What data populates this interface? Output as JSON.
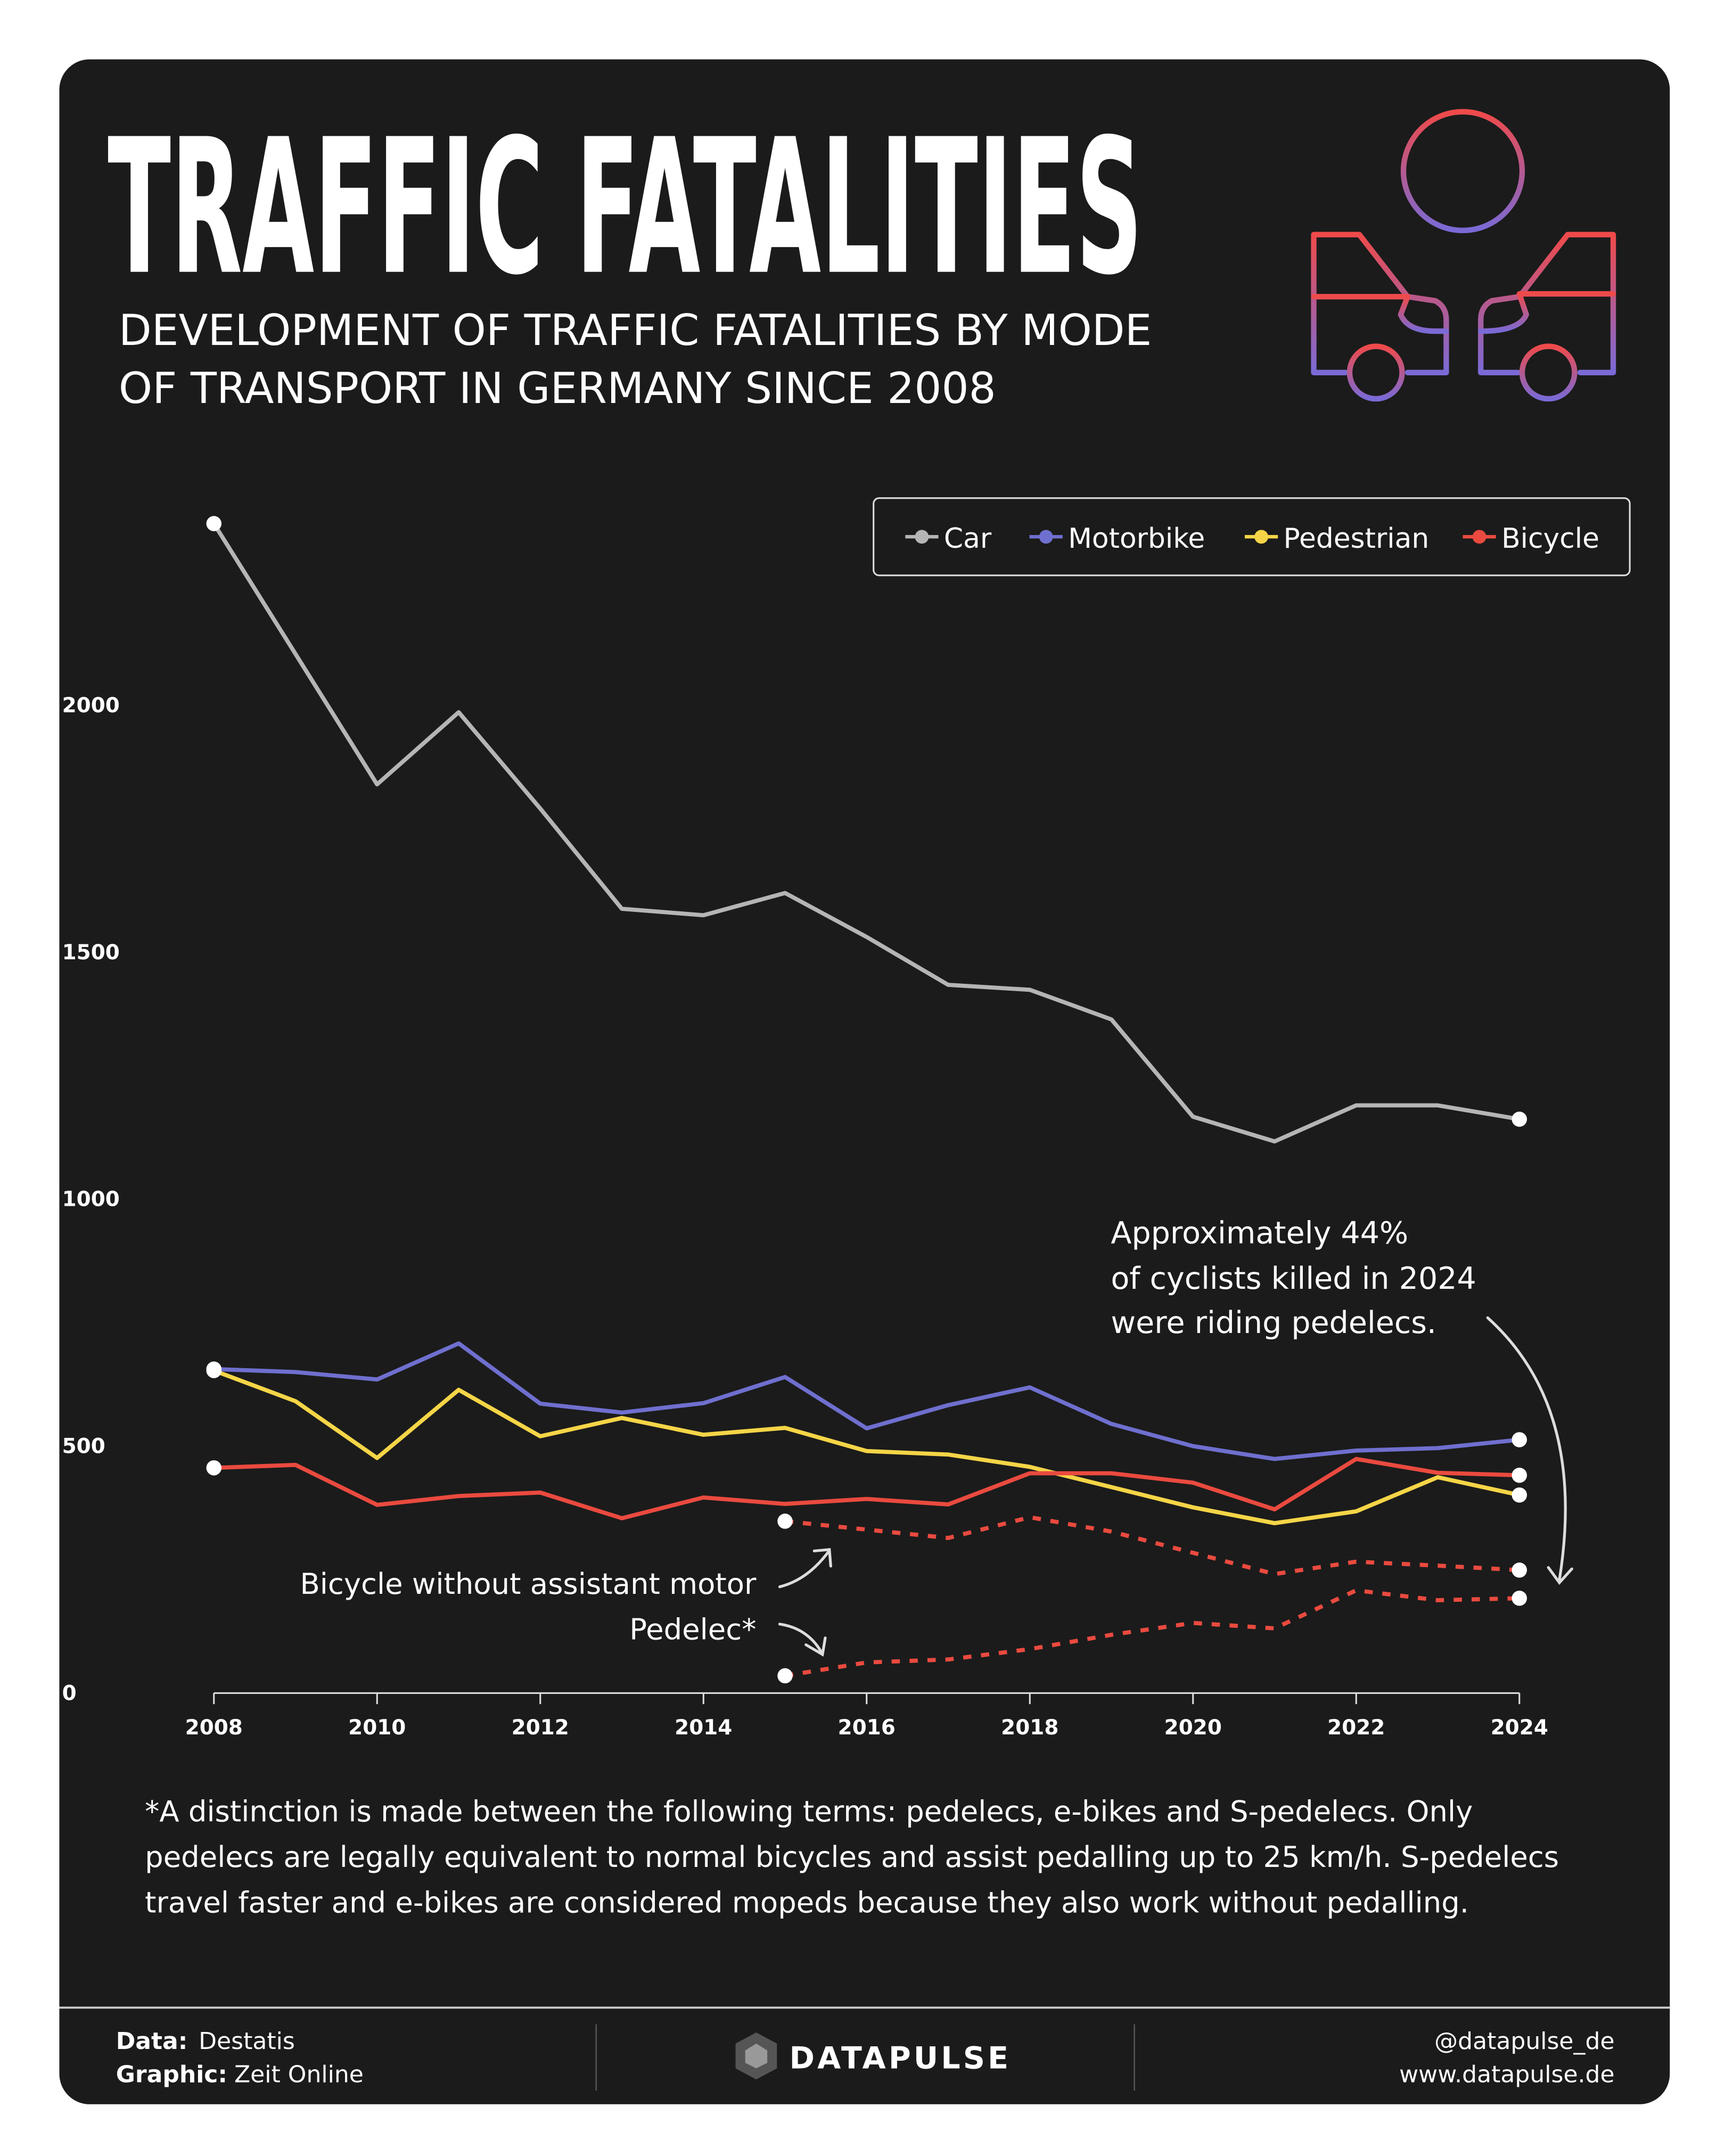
{
  "chart_data": {
    "type": "line",
    "title": "TRAFFIC FATALITIES",
    "subtitle": [
      "DEVELOPMENT OF TRAFFIC FATALITIES BY MODE",
      "OF TRANSPORT IN GERMANY SINCE 2008"
    ],
    "x": [
      2008,
      2009,
      2010,
      2011,
      2012,
      2013,
      2014,
      2015,
      2016,
      2017,
      2018,
      2019,
      2020,
      2021,
      2022,
      2023,
      2024
    ],
    "xlim": [
      2008,
      2024
    ],
    "xticks": [
      2008,
      2010,
      2012,
      2014,
      2016,
      2018,
      2020,
      2022,
      2024
    ],
    "ylim": [
      0,
      2400
    ],
    "yticks": [
      0,
      500,
      1000,
      1500,
      2000
    ],
    "legend": "top-right",
    "series": [
      {
        "name": "Car",
        "color": "#b5b5b5",
        "values": [
          2368,
          2104,
          1840,
          1986,
          1791,
          1588,
          1575,
          1620,
          1531,
          1434,
          1424,
          1364,
          1167,
          1117,
          1190,
          1190,
          1162
        ]
      },
      {
        "name": "Motorbike",
        "color": "#6f6fcf",
        "values": [
          656,
          650,
          635,
          708,
          586,
          568,
          587,
          640,
          536,
          583,
          619,
          545,
          500,
          474,
          491,
          496,
          513
        ]
      },
      {
        "name": "Pedestrian",
        "color": "#f5d547",
        "values": [
          653,
          591,
          476,
          614,
          520,
          557,
          523,
          537,
          490,
          483,
          458,
          417,
          376,
          344,
          368,
          437,
          401
        ]
      },
      {
        "name": "Bicycle",
        "color": "#ea4a3f",
        "values": [
          456,
          462,
          381,
          399,
          406,
          354,
          396,
          383,
          393,
          382,
          445,
          445,
          426,
          372,
          474,
          446,
          441
        ]
      },
      {
        "name": "Bicycle without assistant motor",
        "color": "#ea4a3f",
        "style": "dashed",
        "values": [
          null,
          null,
          null,
          null,
          null,
          null,
          null,
          348,
          331,
          314,
          356,
          327,
          284,
          241,
          266,
          258,
          249
        ]
      },
      {
        "name": "Pedelec*",
        "color": "#ea4a3f",
        "style": "dashed",
        "values": [
          null,
          null,
          null,
          null,
          null,
          null,
          null,
          35,
          62,
          68,
          89,
          118,
          142,
          131,
          208,
          188,
          192
        ]
      }
    ],
    "annotation": [
      "Approximately 44%",
      "of cyclists killed in 2024",
      "were riding pedelecs."
    ],
    "footnote": [
      "*A distinction is made between the following terms: pedelecs, e-bikes and S-pedelecs. Only",
      "pedelecs are legally equivalent to normal bicycles and assist pedalling up to 25 km/h. S-pedelecs",
      "travel faster and e-bikes are considered mopeds because they also work without pedalling."
    ],
    "footer": {
      "data_label": "Data:",
      "data": "Destatis",
      "graphic_label": "Graphic:",
      "graphic": "Zeit Online",
      "brand": "DATAPULSE",
      "handle": "@datapulse_de",
      "website": "www.datapulse.de"
    }
  }
}
